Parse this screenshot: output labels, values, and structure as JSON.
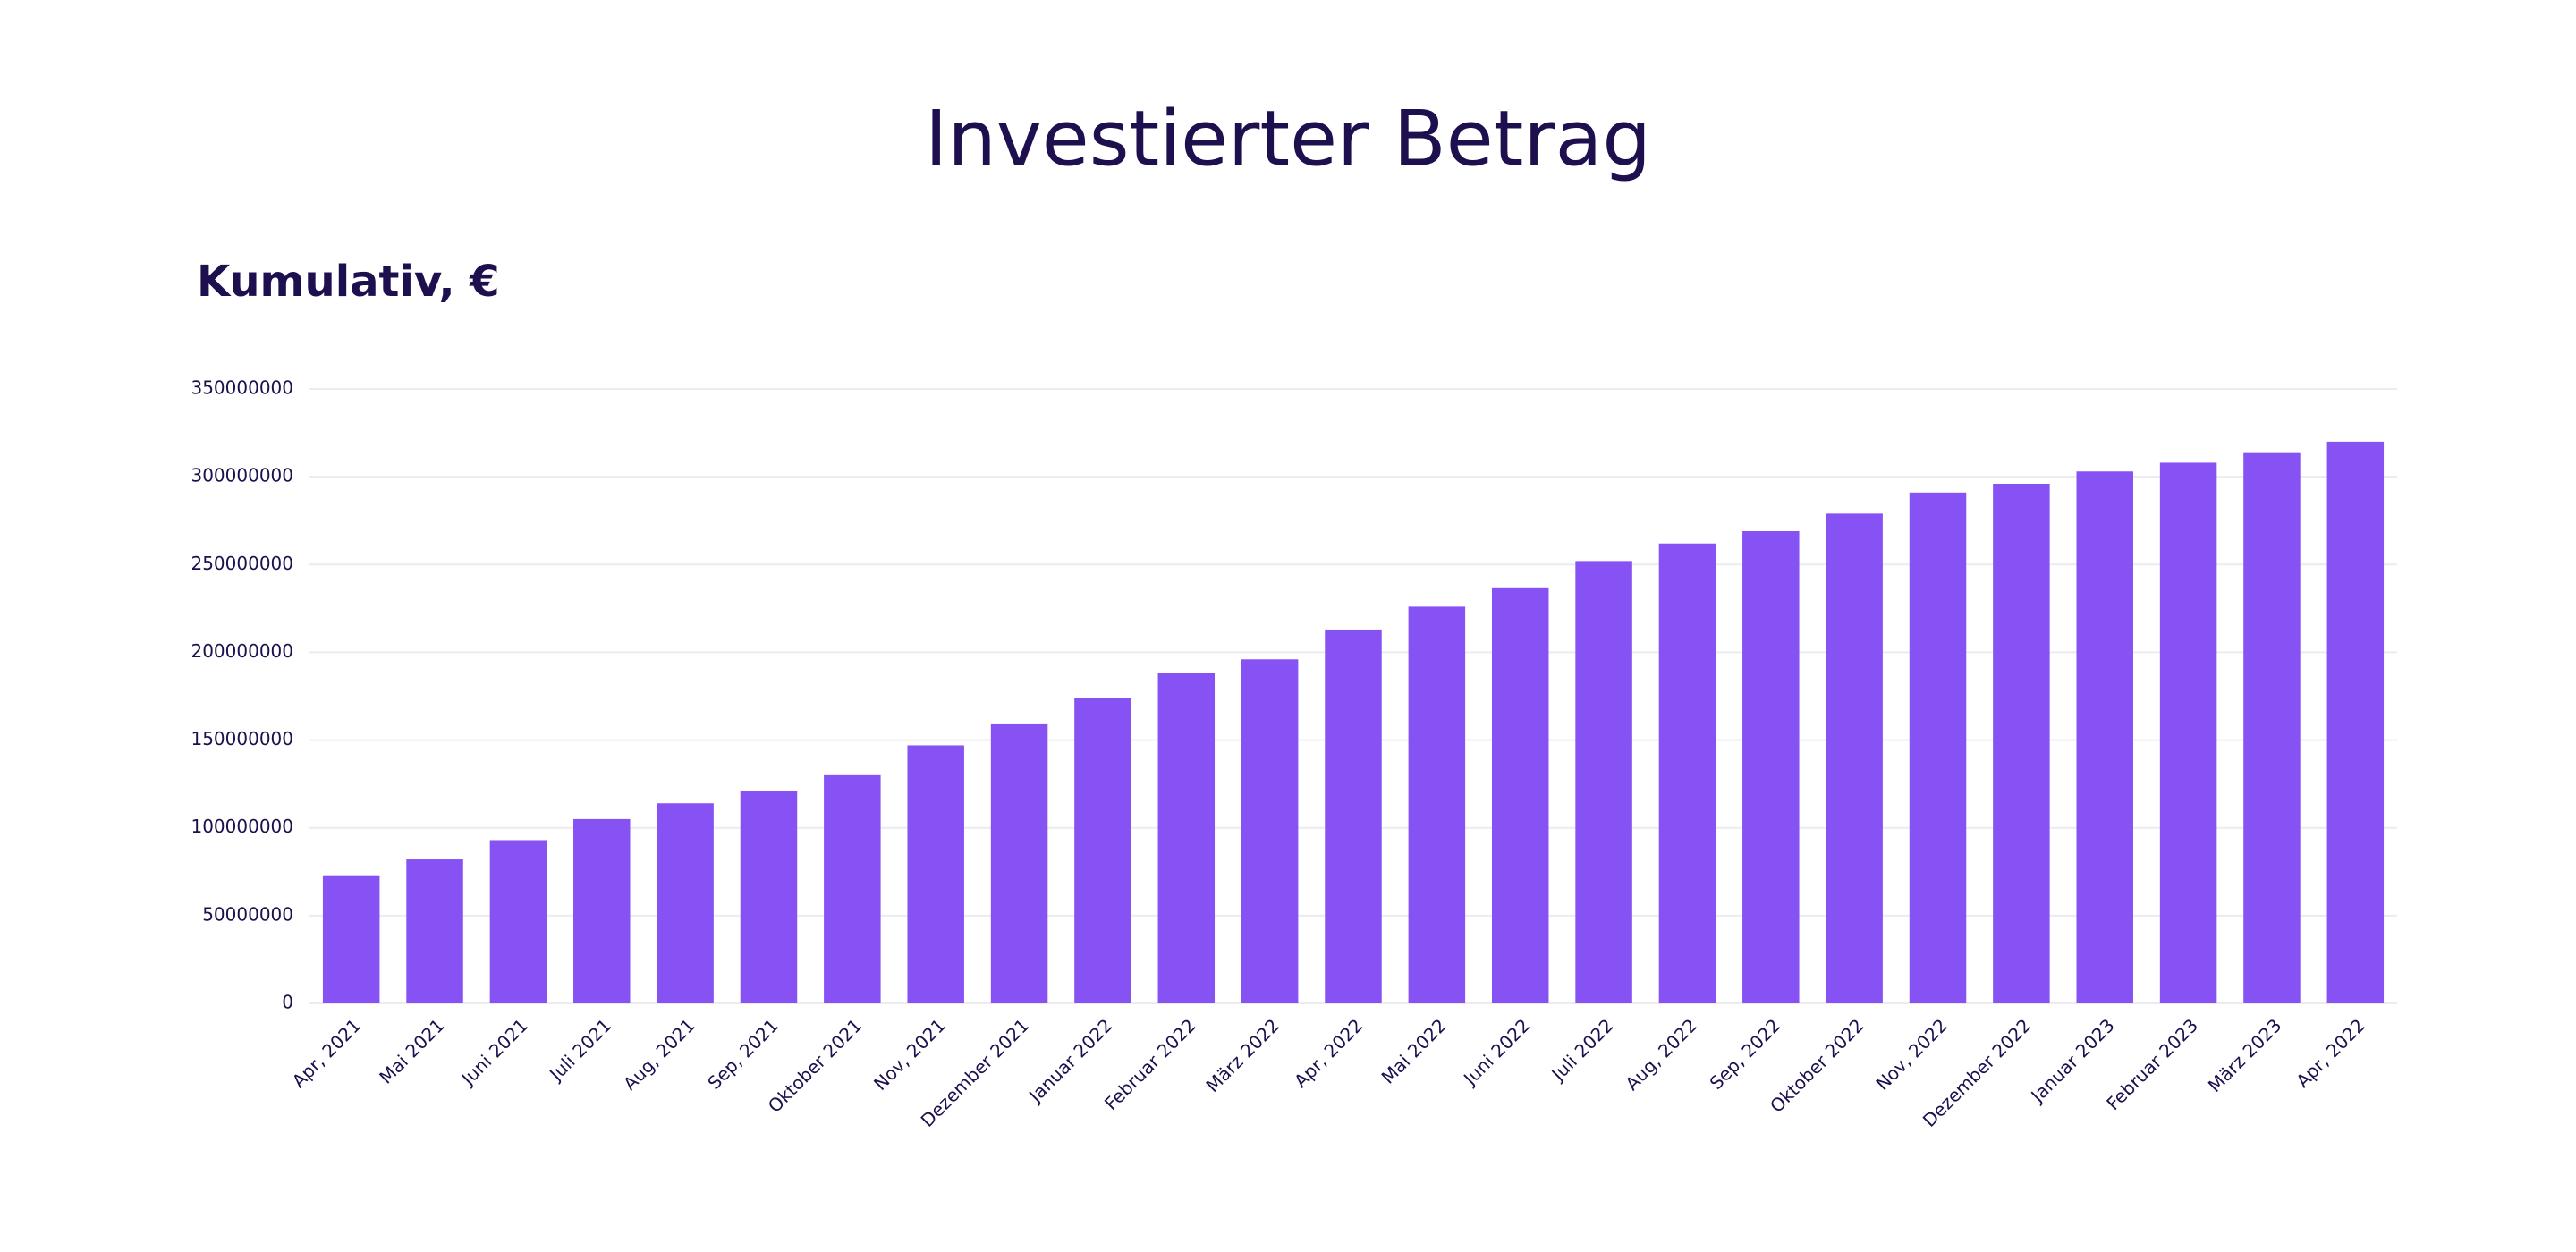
{
  "chart_data": {
    "type": "bar",
    "title": "Investierter Betrag",
    "subtitle": "Kumulativ, €",
    "categories": [
      "Apr, 2021",
      "Mai 2021",
      "Juni 2021",
      "Juli 2021",
      "Aug, 2021",
      "Sep, 2021",
      "Oktober 2021",
      "Nov, 2021",
      "Dezember 2021",
      "Januar 2022",
      "Februar 2022",
      "März 2022",
      "Apr, 2022",
      "Mai 2022",
      "Juni 2022",
      "Juli 2022",
      "Aug, 2022",
      "Sep, 2022",
      "Oktober 2022",
      "Nov, 2022",
      "Dezember 2022",
      "Januar 2023",
      "Februar 2023",
      "März 2023",
      "Apr, 2022"
    ],
    "values": [
      73000000,
      82000000,
      93000000,
      105000000,
      114000000,
      121000000,
      130000000,
      147000000,
      159000000,
      174000000,
      188000000,
      196000000,
      213000000,
      226000000,
      237000000,
      252000000,
      262000000,
      269000000,
      279000000,
      291000000,
      296000000,
      303000000,
      308000000,
      314000000,
      320000000
    ],
    "color": "#8752f3",
    "ylim": [
      0,
      350000000
    ],
    "yticks": [
      0,
      50000000,
      100000000,
      150000000,
      200000000,
      250000000,
      300000000,
      350000000
    ],
    "grid": true
  }
}
